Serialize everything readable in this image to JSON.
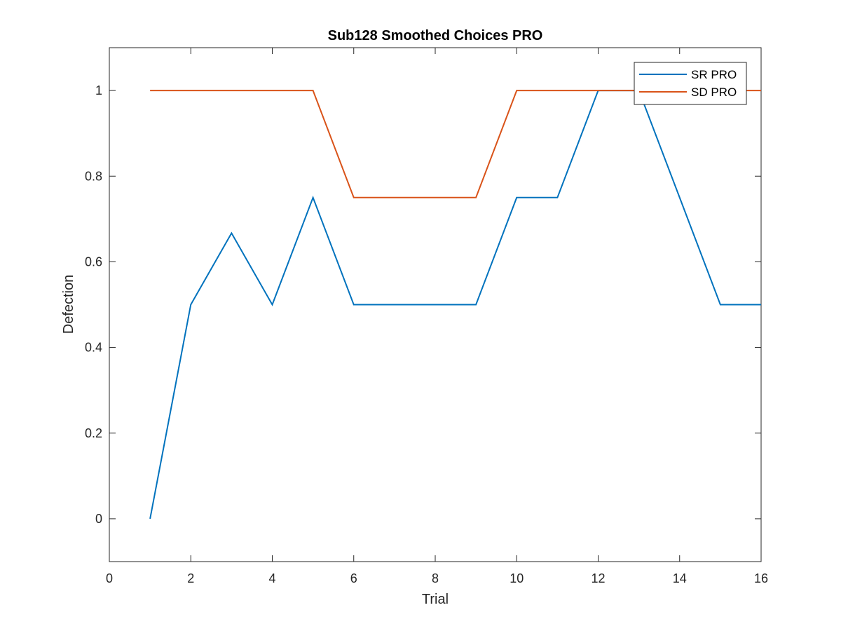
{
  "chart_data": {
    "type": "line",
    "title": "Sub128 Smoothed Choices PRO",
    "xlabel": "Trial",
    "ylabel": "Defection",
    "xlim": [
      0,
      16
    ],
    "ylim": [
      -0.1,
      1.1
    ],
    "xticks": [
      0,
      2,
      4,
      6,
      8,
      10,
      12,
      14,
      16
    ],
    "yticks": [
      0,
      0.2,
      0.4,
      0.6,
      0.8,
      1
    ],
    "xtick_labels": [
      "0",
      "2",
      "4",
      "6",
      "8",
      "10",
      "12",
      "14",
      "16"
    ],
    "ytick_labels": [
      "0",
      "0.2",
      "0.4",
      "0.6",
      "0.8",
      "1"
    ],
    "grid": false,
    "legend_position": "top-right",
    "x": [
      1,
      2,
      3,
      4,
      5,
      6,
      7,
      8,
      9,
      10,
      11,
      12,
      13,
      14,
      15,
      16
    ],
    "series": [
      {
        "name": "SR PRO",
        "color": "#0072BD",
        "values": [
          0,
          0.5,
          0.667,
          0.5,
          0.75,
          0.5,
          0.5,
          0.5,
          0.5,
          0.75,
          0.75,
          1,
          1,
          0.75,
          0.5,
          0.5
        ]
      },
      {
        "name": "SD PRO",
        "color": "#D95319",
        "values": [
          1,
          1,
          1,
          1,
          1,
          0.75,
          0.75,
          0.75,
          0.75,
          1,
          1,
          1,
          1,
          1,
          1,
          1
        ]
      }
    ]
  }
}
